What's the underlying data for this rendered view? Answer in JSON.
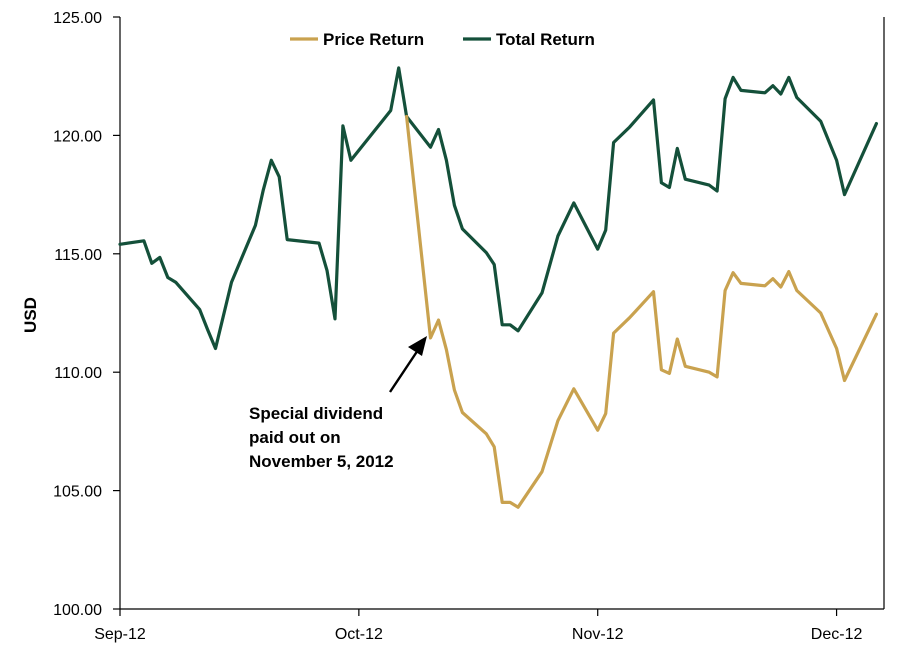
{
  "chart_data": {
    "type": "line",
    "ylabel": "USD",
    "ylim": [
      100,
      125
    ],
    "yticks": [
      "100.00",
      "105.00",
      "110.00",
      "115.00",
      "120.00",
      "125.00"
    ],
    "xlim": [
      "2012-09-03",
      "2012-12-04"
    ],
    "xticks": [
      {
        "date": "2012-09-03",
        "label": "Sep-12"
      },
      {
        "date": "2012-10-03",
        "label": "Oct-12"
      },
      {
        "date": "2012-11-02",
        "label": "Nov-12"
      },
      {
        "date": "2012-12-02",
        "label": "Dec-12"
      }
    ],
    "legend": {
      "position": "top-center"
    },
    "grid": false,
    "series": [
      {
        "name": "Total Return",
        "color": "#14503a",
        "points": [
          [
            "2012-09-03",
            115.4
          ],
          [
            "2012-09-06",
            115.55
          ],
          [
            "2012-09-07",
            114.6
          ],
          [
            "2012-09-08",
            114.85
          ],
          [
            "2012-09-09",
            114.0
          ],
          [
            "2012-09-10",
            113.8
          ],
          [
            "2012-09-13",
            112.65
          ],
          [
            "2012-09-14",
            111.8
          ],
          [
            "2012-09-15",
            111.0
          ],
          [
            "2012-09-17",
            113.8
          ],
          [
            "2012-09-20",
            116.2
          ],
          [
            "2012-09-21",
            117.7
          ],
          [
            "2012-09-22",
            118.95
          ],
          [
            "2012-09-23",
            118.25
          ],
          [
            "2012-09-24",
            115.6
          ],
          [
            "2012-09-28",
            115.45
          ],
          [
            "2012-09-29",
            114.3
          ],
          [
            "2012-09-30",
            112.25
          ],
          [
            "2012-10-01",
            120.4
          ],
          [
            "2012-10-02",
            118.95
          ],
          [
            "2012-10-07",
            121.05
          ],
          [
            "2012-10-08",
            122.85
          ],
          [
            "2012-10-09",
            120.8
          ],
          [
            "2012-10-12",
            119.5
          ],
          [
            "2012-10-13",
            120.25
          ],
          [
            "2012-10-14",
            118.95
          ],
          [
            "2012-10-15",
            117.05
          ],
          [
            "2012-10-16",
            116.05
          ],
          [
            "2012-10-19",
            115.05
          ],
          [
            "2012-10-20",
            114.55
          ],
          [
            "2012-10-21",
            112.0
          ],
          [
            "2012-10-22",
            112.0
          ],
          [
            "2012-10-23",
            111.75
          ],
          [
            "2012-10-26",
            113.35
          ],
          [
            "2012-10-28",
            115.75
          ],
          [
            "2012-10-30",
            117.15
          ],
          [
            "2012-11-02",
            115.2
          ],
          [
            "2012-11-03",
            116.0
          ],
          [
            "2012-11-04",
            119.7
          ],
          [
            "2012-11-06",
            120.35
          ],
          [
            "2012-11-09",
            121.5
          ],
          [
            "2012-11-10",
            118.0
          ],
          [
            "2012-11-11",
            117.8
          ],
          [
            "2012-11-12",
            119.45
          ],
          [
            "2012-11-13",
            118.15
          ],
          [
            "2012-11-16",
            117.9
          ],
          [
            "2012-11-17",
            117.65
          ],
          [
            "2012-11-18",
            121.55
          ],
          [
            "2012-11-19",
            122.45
          ],
          [
            "2012-11-20",
            121.9
          ],
          [
            "2012-11-23",
            121.8
          ],
          [
            "2012-11-24",
            122.1
          ],
          [
            "2012-11-25",
            121.75
          ],
          [
            "2012-11-26",
            122.45
          ],
          [
            "2012-11-27",
            121.6
          ],
          [
            "2012-11-30",
            120.6
          ],
          [
            "2012-12-02",
            118.95
          ],
          [
            "2012-12-03",
            117.5
          ],
          [
            "2012-12-07",
            120.5
          ]
        ]
      },
      {
        "name": "Price Return",
        "color": "#c9a24f",
        "points": [
          [
            "2012-10-09",
            120.8
          ],
          [
            "2012-10-12",
            111.45
          ],
          [
            "2012-10-13",
            112.2
          ],
          [
            "2012-10-14",
            110.95
          ],
          [
            "2012-10-15",
            109.25
          ],
          [
            "2012-10-16",
            108.3
          ],
          [
            "2012-10-19",
            107.4
          ],
          [
            "2012-10-20",
            106.85
          ],
          [
            "2012-10-21",
            104.5
          ],
          [
            "2012-10-22",
            104.5
          ],
          [
            "2012-10-23",
            104.3
          ],
          [
            "2012-10-26",
            105.8
          ],
          [
            "2012-10-28",
            107.95
          ],
          [
            "2012-10-30",
            109.3
          ],
          [
            "2012-11-02",
            107.55
          ],
          [
            "2012-11-03",
            108.25
          ],
          [
            "2012-11-04",
            111.65
          ],
          [
            "2012-11-06",
            112.3
          ],
          [
            "2012-11-09",
            113.4
          ],
          [
            "2012-11-10",
            110.1
          ],
          [
            "2012-11-11",
            109.95
          ],
          [
            "2012-11-12",
            111.4
          ],
          [
            "2012-11-13",
            110.25
          ],
          [
            "2012-11-16",
            110.0
          ],
          [
            "2012-11-17",
            109.8
          ],
          [
            "2012-11-18",
            113.45
          ],
          [
            "2012-11-19",
            114.2
          ],
          [
            "2012-11-20",
            113.75
          ],
          [
            "2012-11-23",
            113.65
          ],
          [
            "2012-11-24",
            113.95
          ],
          [
            "2012-11-25",
            113.6
          ],
          [
            "2012-11-26",
            114.25
          ],
          [
            "2012-11-27",
            113.45
          ],
          [
            "2012-11-30",
            112.5
          ],
          [
            "2012-12-02",
            111.0
          ],
          [
            "2012-12-03",
            109.65
          ],
          [
            "2012-12-07",
            112.45
          ]
        ]
      }
    ],
    "annotation": {
      "lines": [
        "Special dividend",
        "paid out on",
        "November 5, 2012"
      ],
      "arrow_target": [
        "2012-10-12",
        111.45
      ]
    }
  }
}
